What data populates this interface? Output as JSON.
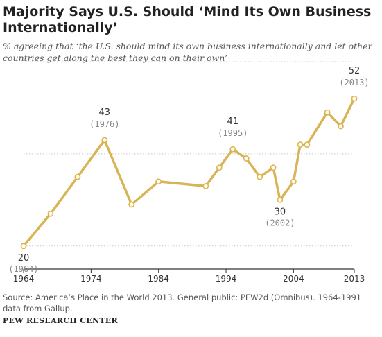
{
  "title": "Majority Says U.S. Should ‘Mind Its Own Business Internationally’",
  "subtitle": "% agreeing that ‘the U.S. should mind its own business internationally and let other countries get along the best they can on their own’",
  "source": "Source: America’s Place in the World 2013. General public: PEW2d (Omnibus). 1964-1991 data from Gallup.",
  "brand": "PEW RESEARCH CENTER",
  "colors": {
    "line": "#d9b455",
    "marker_fill": "#fffbe8",
    "grid": "#c8c8c8",
    "axis": "#333333"
  },
  "chart_data": {
    "type": "line",
    "series": [
      {
        "x": [
          1964,
          1968,
          1972,
          1976,
          1980,
          1984,
          1991,
          1993,
          1995,
          1997,
          1999,
          2001,
          2002,
          2004,
          2005,
          2006,
          2009,
          2011,
          2013
        ],
        "y": [
          20,
          27,
          35,
          43,
          29,
          34,
          33,
          37,
          41,
          39,
          35,
          37,
          30,
          34,
          42,
          42,
          49,
          46,
          52
        ]
      }
    ],
    "xlim": [
      1964,
      2013
    ],
    "ylim": [
      15,
      60
    ],
    "xticks": [
      "1964",
      "1974",
      "1984",
      "1994",
      "2004",
      "2013"
    ],
    "xtick_values": [
      1964,
      1974,
      1984,
      1994,
      2004,
      2013
    ],
    "gridlines_y": [
      20,
      40,
      60
    ],
    "annotations": [
      {
        "value": "20",
        "year": "(1964)",
        "x": 1964,
        "y": 20,
        "position": "below"
      },
      {
        "value": "43",
        "year": "(1976)",
        "x": 1976,
        "y": 43,
        "position": "above"
      },
      {
        "value": "41",
        "year": "(1995)",
        "x": 1995,
        "y": 41,
        "position": "above"
      },
      {
        "value": "30",
        "year": "(2002)",
        "x": 2002,
        "y": 30,
        "position": "below"
      },
      {
        "value": "52",
        "year": "(2013)",
        "x": 2013,
        "y": 52,
        "position": "above"
      }
    ]
  }
}
